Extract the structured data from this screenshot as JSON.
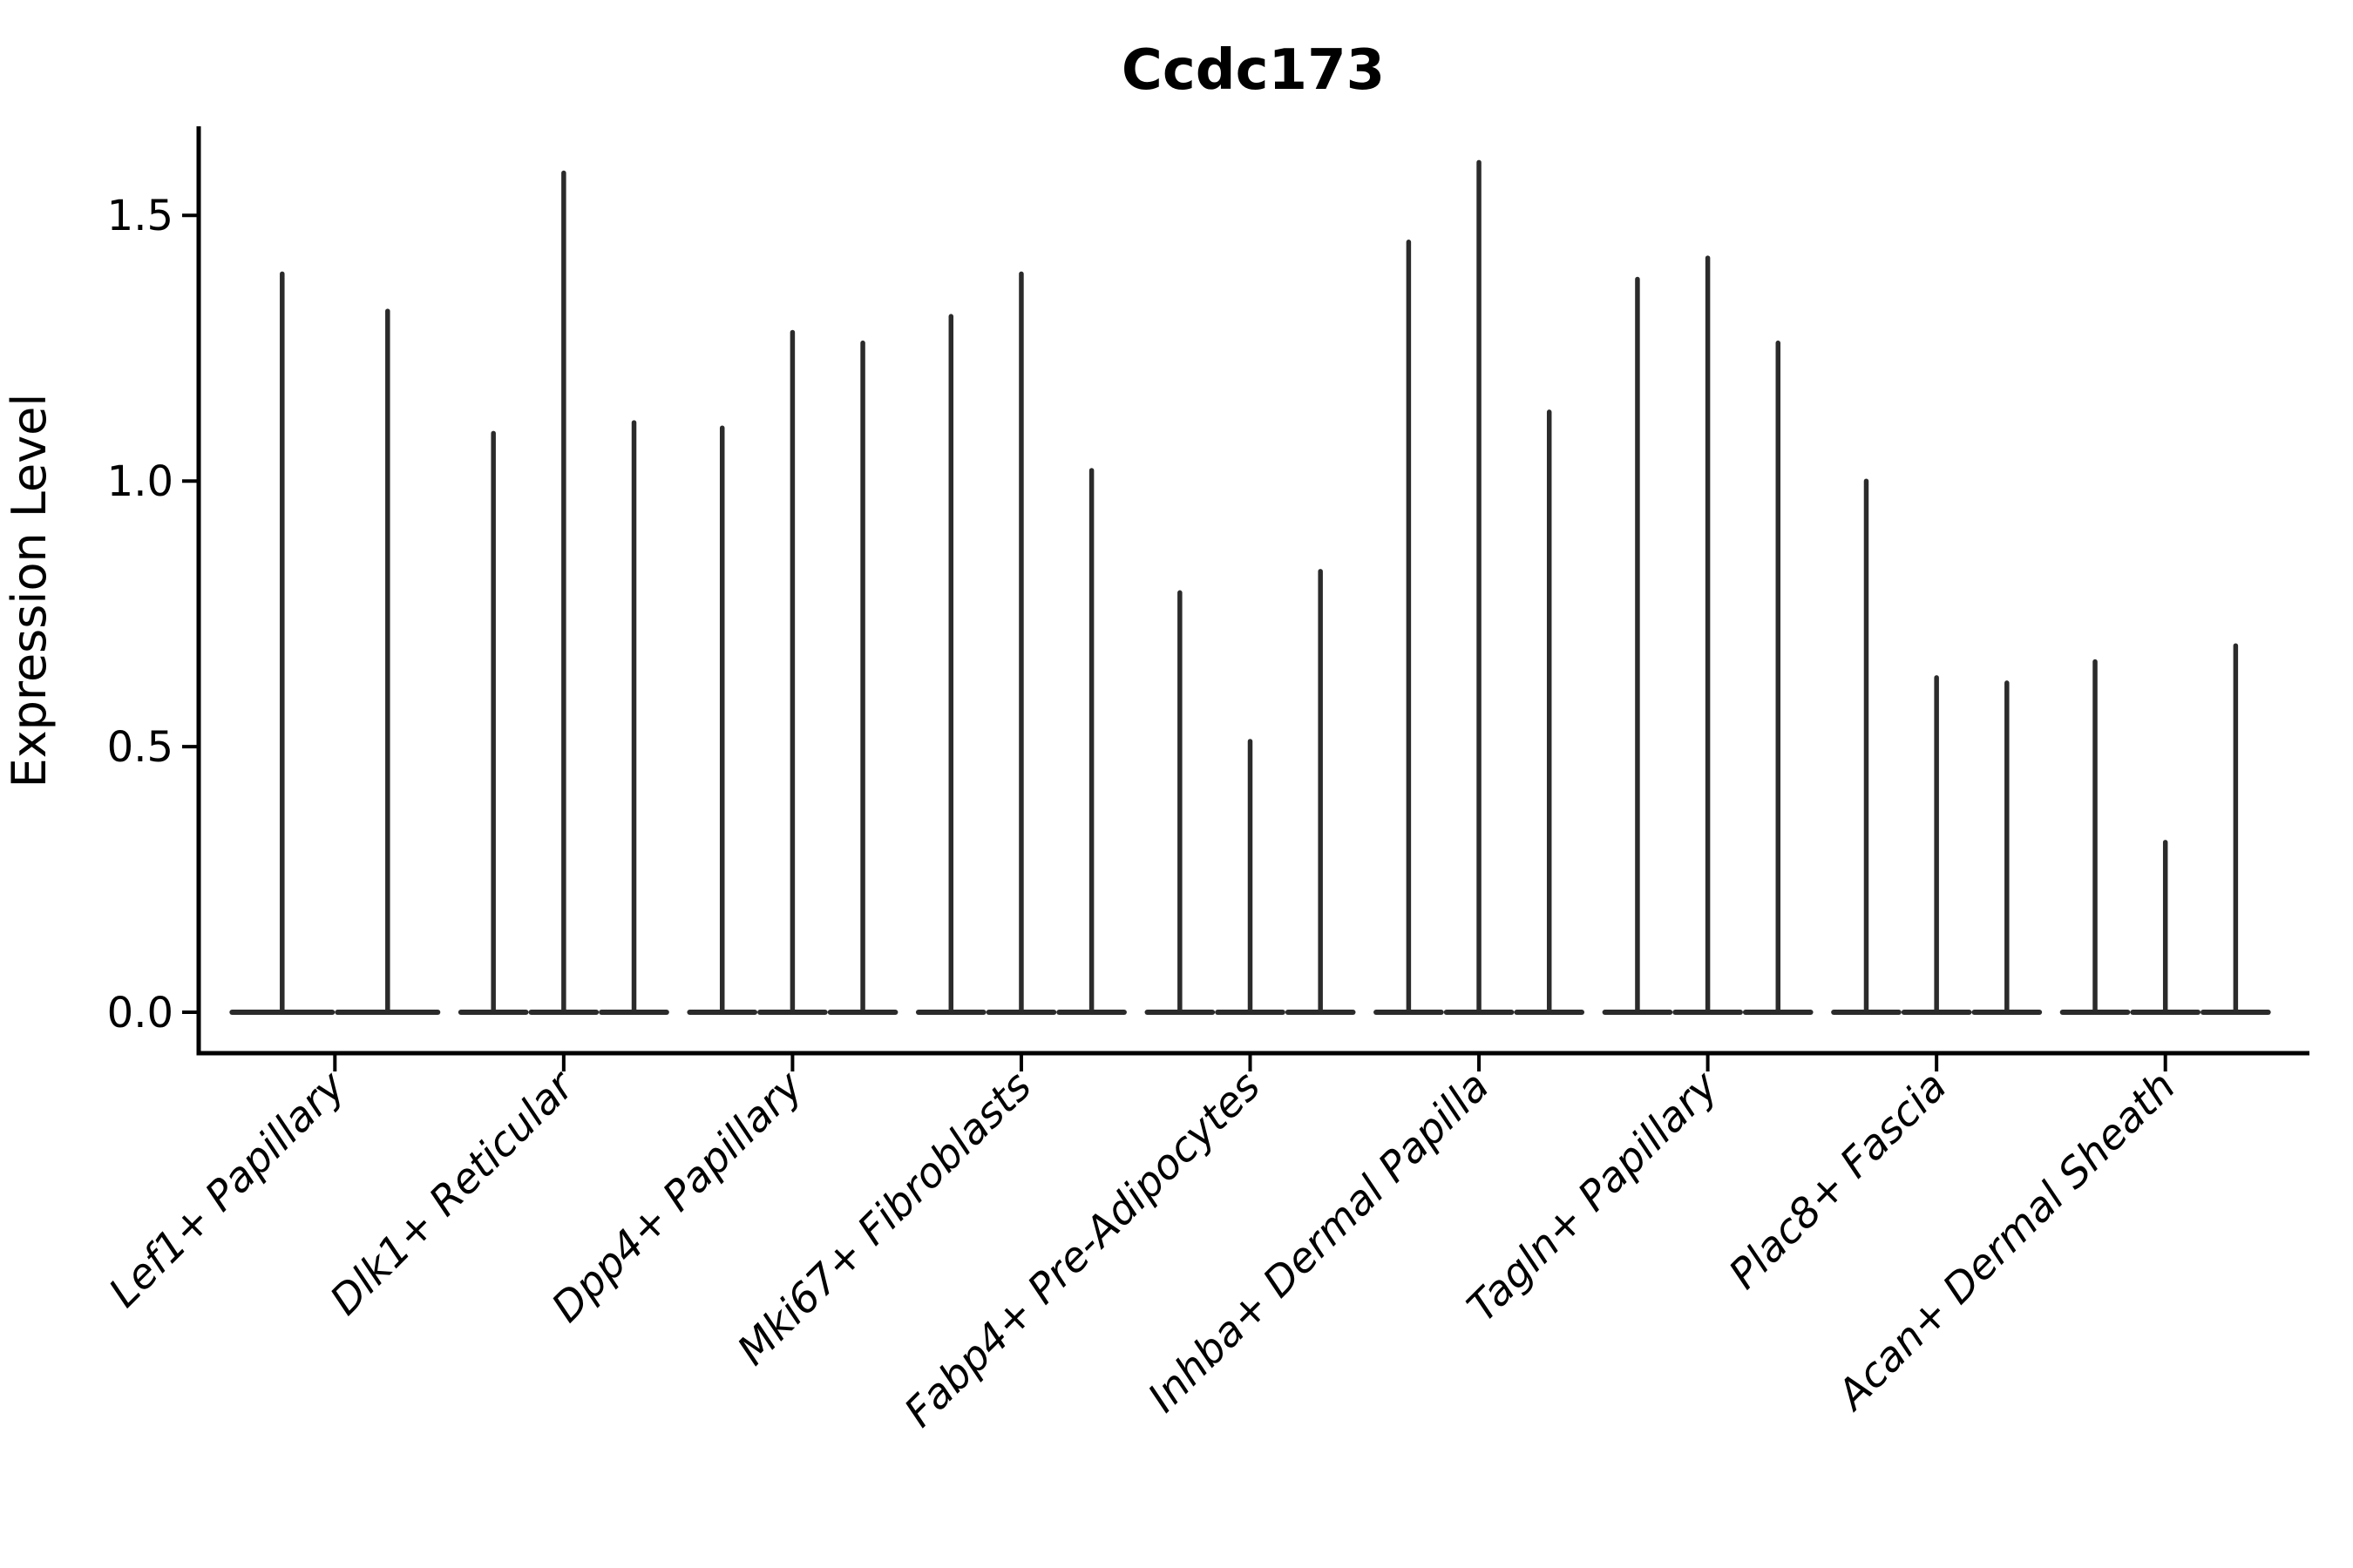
{
  "title": "Ccdc173",
  "axes": {
    "ylabel": "Expression Level",
    "ytick_labels": [
      "0.0",
      "0.5",
      "1.0",
      "1.5"
    ]
  },
  "chart_data": {
    "type": "violin",
    "title": "Ccdc173",
    "xlabel": "",
    "ylabel": "Expression Level",
    "ylim": [
      0,
      1.67
    ],
    "yticks": [
      0.0,
      0.5,
      1.0,
      1.5
    ],
    "grid": false,
    "legend": "none",
    "x_tick_rotation": 45,
    "categories": [
      "Lef1+ Papillary",
      "Dlk1+ Reticular",
      "Dpp4+ Papillary",
      "Mki67+ Fibroblasts",
      "Fabp4+ Pre-Adipocytes",
      "Inhba+ Dermal Papilla",
      "Tagln+ Papillary",
      "Plac8+ Fascia",
      "Acan+ Dermal Sheath"
    ],
    "groups": [
      {
        "category": "Lef1+ Papillary",
        "violin_max_values": [
          1.39,
          1.32
        ]
      },
      {
        "category": "Dlk1+ Reticular",
        "violin_max_values": [
          1.09,
          1.58,
          1.11
        ]
      },
      {
        "category": "Dpp4+ Papillary",
        "violin_max_values": [
          1.1,
          1.28,
          1.26
        ]
      },
      {
        "category": "Mki67+ Fibroblasts",
        "violin_max_values": [
          1.31,
          1.39,
          1.02
        ]
      },
      {
        "category": "Fabp4+ Pre-Adipocytes",
        "violin_max_values": [
          0.79,
          0.51,
          0.83
        ]
      },
      {
        "category": "Inhba+ Dermal Papilla",
        "violin_max_values": [
          1.45,
          1.6,
          1.13
        ]
      },
      {
        "category": "Tagln+ Papillary",
        "violin_max_values": [
          1.38,
          1.42,
          1.26
        ]
      },
      {
        "category": "Plac8+ Fascia",
        "violin_max_values": [
          1.0,
          0.63,
          0.62
        ]
      },
      {
        "category": "Acan+ Dermal Sheath",
        "violin_max_values": [
          0.66,
          0.32,
          0.69
        ]
      }
    ],
    "violin_shape_note": "Each violin is a flat horizontal base at expression 0 with a very thin vertical spike reaching its max value"
  },
  "colors": {
    "violin_line": "#2b2b2b",
    "spine": "#000000",
    "text": "#000000",
    "background": "#ffffff"
  }
}
